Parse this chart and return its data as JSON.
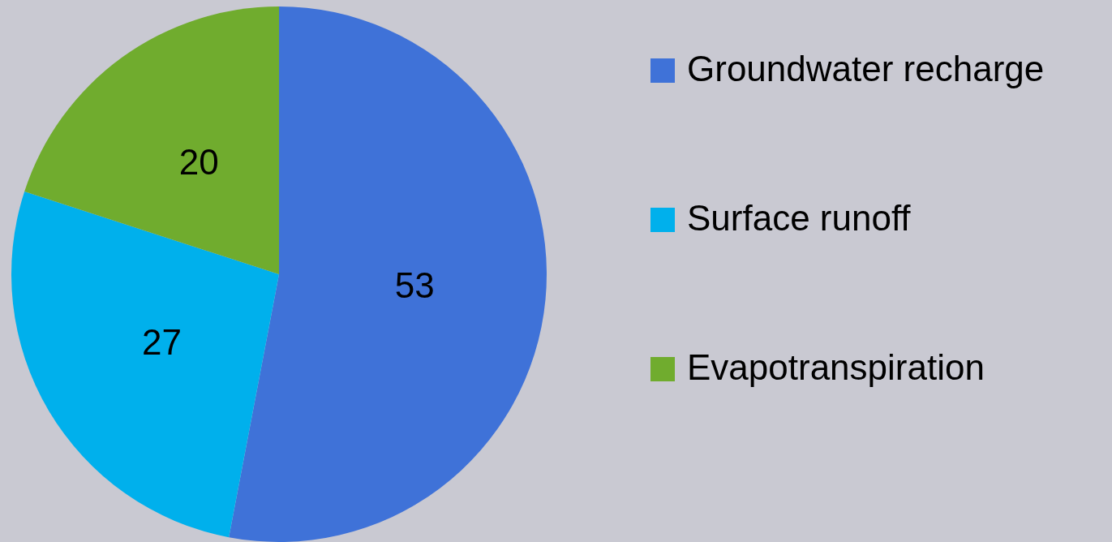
{
  "chart_data": {
    "type": "pie",
    "categories": [
      "Groundwater recharge",
      "Surface runoff",
      "Evapotranspiration"
    ],
    "values": [
      53,
      27,
      20
    ],
    "colors": [
      "#3f72d8",
      "#00b0ec",
      "#70ac2e"
    ],
    "data_labels": true,
    "legend": "right"
  }
}
